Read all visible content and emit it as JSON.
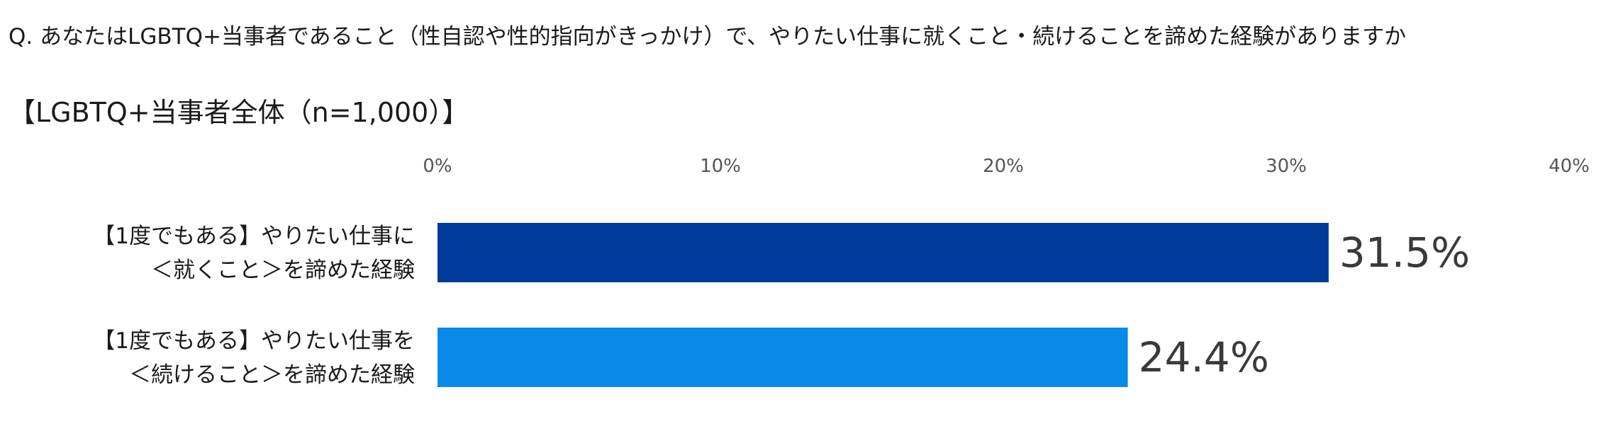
{
  "question": "Q. あなたはLGBTQ+当事者であること（性自認や性的指向がきっかけ）で、やりたい仕事に就くこと・続けることを諦めた経験がありますか",
  "chart_data": {
    "type": "bar",
    "orientation": "horizontal",
    "title": "【LGBTQ+当事者全体（n=1,000）】",
    "categories": [
      [
        "【1度でもある】やりたい仕事に",
        "＜就くこと＞を諦めた経験"
      ],
      [
        "【1度でもある】やりたい仕事を",
        "＜続けること＞を諦めた経験"
      ]
    ],
    "values": [
      31.5,
      24.4
    ],
    "value_labels": [
      "31.5%",
      "24.4%"
    ],
    "xlim": [
      0,
      40
    ],
    "xticks": [
      0,
      10,
      20,
      30,
      40
    ],
    "xtick_labels": [
      "0%",
      "10%",
      "20%",
      "30%",
      "40%"
    ],
    "tick_position": "top",
    "grid": false,
    "legend": "none",
    "colors": [
      "#003a9b",
      "#0a8ae8"
    ]
  }
}
